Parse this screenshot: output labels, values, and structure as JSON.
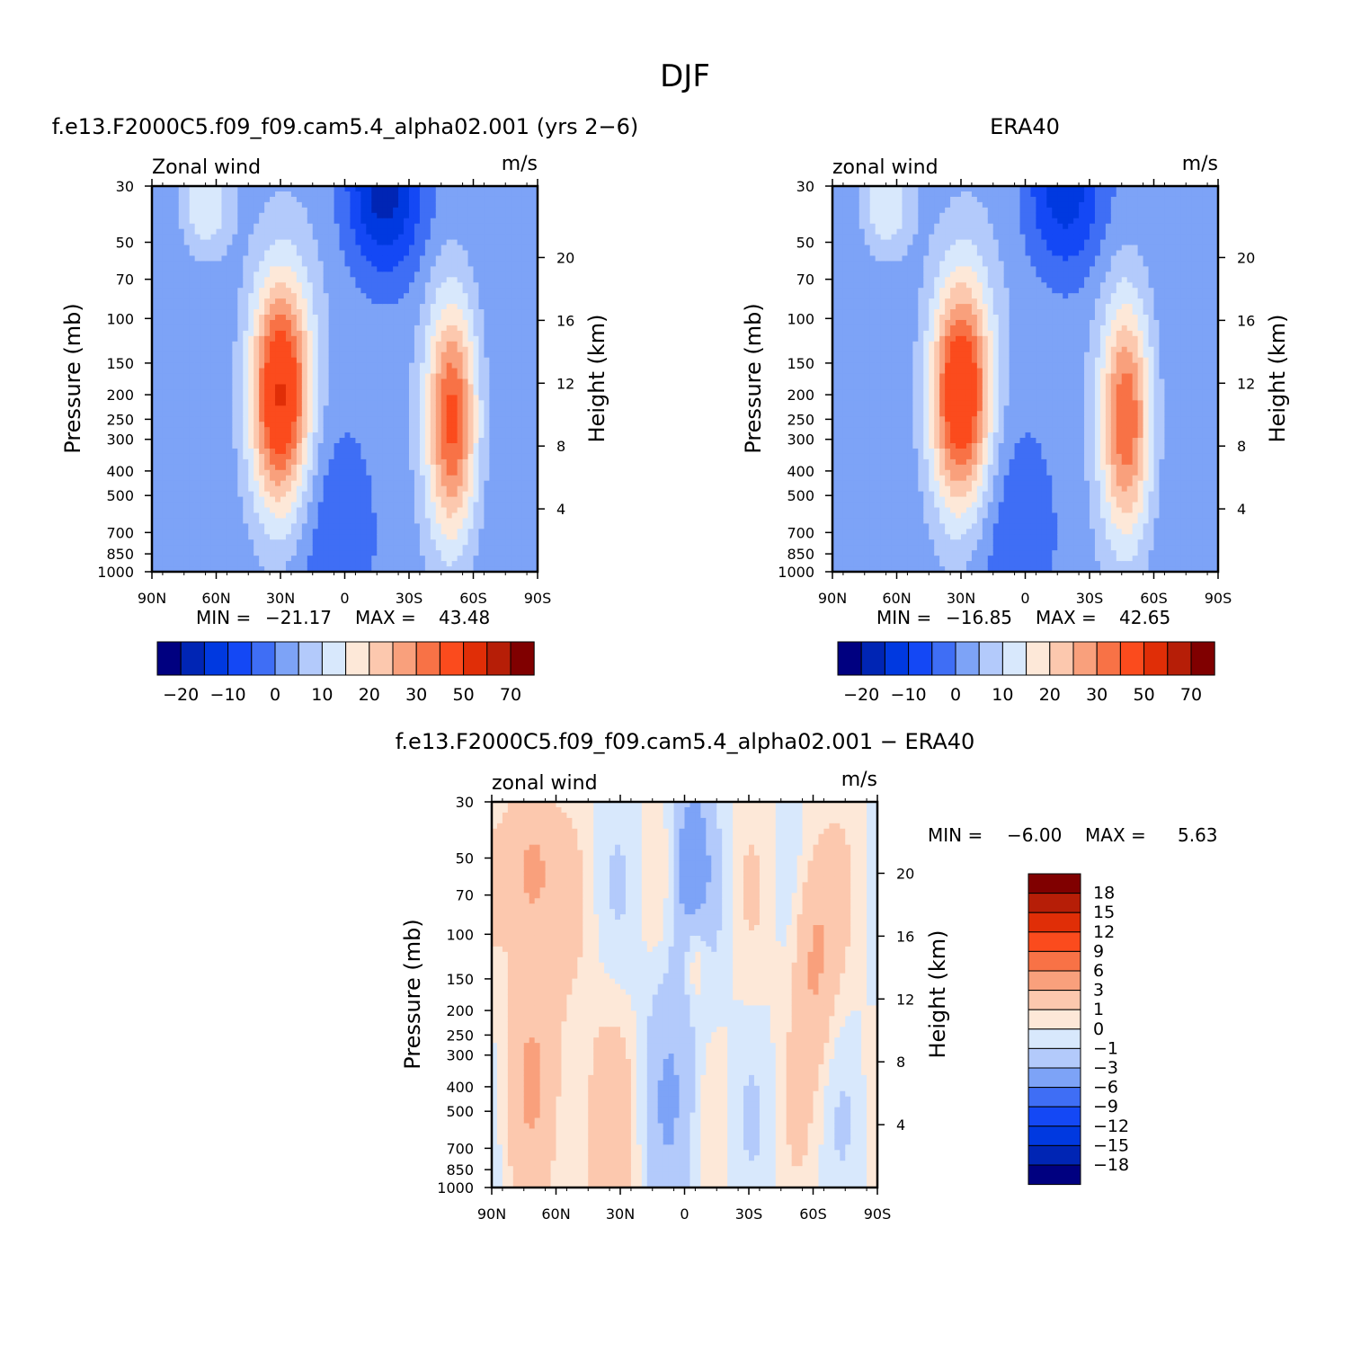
{
  "title": "DJF",
  "colors": {
    "filled_palette": [
      "#000080",
      "#0025b4",
      "#0039e0",
      "#1448f5",
      "#3f6ef5",
      "#7da3f7",
      "#b3cafb",
      "#d8e8fc",
      "#fde8d8",
      "#fcc8ae",
      "#f9a07c",
      "#f87246",
      "#fb4b1d",
      "#e02e07",
      "#b61e07",
      "#800000"
    ]
  },
  "panels": [
    {
      "title": "f.e13.F2000C5.f09_f09.cam5.4_alpha02.001 (yrs 2−6)",
      "left_label": "Zonal wind",
      "right_label": "m/s",
      "ylabel": "Pressure (mb)",
      "y2label": "Height (km)",
      "stats": {
        "min_label": "MIN =",
        "min": "−21.17",
        "max_label": "MAX =",
        "max": "43.48"
      },
      "colorbar_labels": [
        "−20",
        "−10",
        "0",
        "10",
        "20",
        "30",
        "50",
        "70"
      ]
    },
    {
      "title": "ERA40",
      "left_label": "zonal wind",
      "right_label": "m/s",
      "ylabel": "Pressure (mb)",
      "y2label": "Height (km)",
      "stats": {
        "min_label": "MIN =",
        "min": "−16.85",
        "max_label": "MAX =",
        "max": "42.65"
      },
      "colorbar_labels": [
        "−20",
        "−10",
        "0",
        "10",
        "20",
        "30",
        "50",
        "70"
      ]
    },
    {
      "title": "f.e13.F2000C5.f09_f09.cam5.4_alpha02.001 − ERA40",
      "left_label": "zonal wind",
      "right_label": "m/s",
      "ylabel": "Pressure (mb)",
      "y2label": "Height (km)",
      "stats": {
        "min_label": "MIN =",
        "min": "−6.00",
        "max_label": "MAX =",
        "max": "5.63"
      },
      "colorbar_labels": [
        "18",
        "15",
        "12",
        "9",
        "6",
        "3",
        "1",
        "0",
        "−1",
        "−3",
        "−6",
        "−9",
        "−12",
        "−15",
        "−18"
      ]
    }
  ],
  "chart_data": [
    {
      "type": "heatmap",
      "title": "f.e13.F2000C5.f09_f09.cam5.4_alpha02.001 (yrs 2−6)",
      "ylabel": "Pressure (mb)",
      "y2label": "Height (km)",
      "x_ticks": [
        "90N",
        "60N",
        "30N",
        "0",
        "30S",
        "60S",
        "90S"
      ],
      "y_ticks": [
        "30",
        "50",
        "70",
        "100",
        "150",
        "200",
        "250",
        "300",
        "400",
        "500",
        "700",
        "850",
        "1000"
      ],
      "y2_ticks": [
        "20",
        "16",
        "12",
        "8",
        "4"
      ],
      "levels": [
        -25,
        -20,
        -15,
        -10,
        -5,
        0,
        5,
        10,
        15,
        20,
        25,
        30,
        40,
        50,
        60,
        70
      ],
      "features": [
        {
          "label": "westerly jet 30N",
          "lat": 30,
          "p": 200,
          "value": 43.48
        },
        {
          "label": "westerly jet 50S",
          "lat": -50,
          "p": 250,
          "value": 35
        },
        {
          "label": "easterly max",
          "lat": -20,
          "p": 30,
          "value": -21.17
        }
      ]
    },
    {
      "type": "heatmap",
      "title": "ERA40",
      "ylabel": "Pressure (mb)",
      "y2label": "Height (km)",
      "x_ticks": [
        "90N",
        "60N",
        "30N",
        "0",
        "30S",
        "60S",
        "90S"
      ],
      "y_ticks": [
        "30",
        "50",
        "70",
        "100",
        "150",
        "200",
        "250",
        "300",
        "400",
        "500",
        "700",
        "850",
        "1000"
      ],
      "y2_ticks": [
        "20",
        "16",
        "12",
        "8",
        "4"
      ],
      "levels": [
        -25,
        -20,
        -15,
        -10,
        -5,
        0,
        5,
        10,
        15,
        20,
        25,
        30,
        40,
        50,
        60,
        70
      ],
      "features": [
        {
          "label": "westerly jet 30N",
          "lat": 30,
          "p": 200,
          "value": 42.65
        },
        {
          "label": "westerly jet 50S",
          "lat": -48,
          "p": 250,
          "value": 33
        },
        {
          "label": "easterly max",
          "lat": -18,
          "p": 30,
          "value": -16.85
        }
      ]
    },
    {
      "type": "heatmap",
      "title": "f.e13.F2000C5.f09_f09.cam5.4_alpha02.001 − ERA40",
      "ylabel": "Pressure (mb)",
      "y2label": "Height (km)",
      "x_ticks": [
        "90N",
        "60N",
        "30N",
        "0",
        "30S",
        "60S",
        "90S"
      ],
      "y_ticks": [
        "30",
        "50",
        "70",
        "100",
        "150",
        "200",
        "250",
        "300",
        "400",
        "500",
        "700",
        "850",
        "1000"
      ],
      "y2_ticks": [
        "20",
        "16",
        "12",
        "8",
        "4"
      ],
      "levels": [
        -18,
        -15,
        -12,
        -9,
        -6,
        -3,
        -1,
        0,
        1,
        3,
        6,
        9,
        12,
        15,
        18
      ],
      "features": [
        {
          "label": "positive band 75N",
          "lat": 75,
          "p": 50,
          "value": 4
        },
        {
          "label": "negative region 5S",
          "lat": -5,
          "p": 50,
          "value": -4
        },
        {
          "label": "positive band 55S",
          "lat": -55,
          "p": 150,
          "value": 4
        }
      ]
    }
  ]
}
